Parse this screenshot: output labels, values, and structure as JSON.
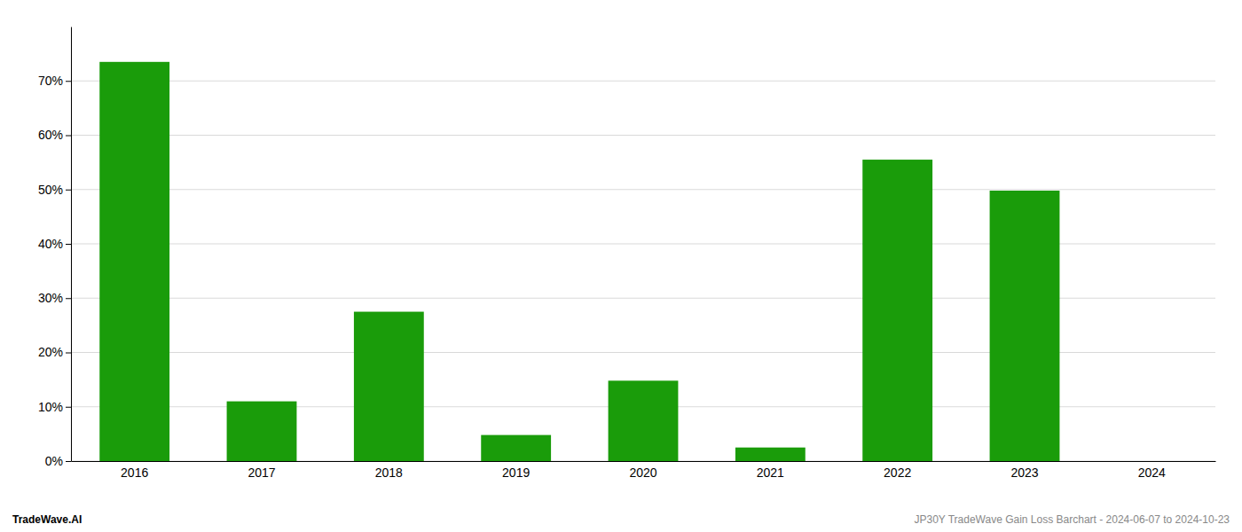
{
  "chart_data": {
    "type": "bar",
    "categories": [
      "2016",
      "2017",
      "2018",
      "2019",
      "2020",
      "2021",
      "2022",
      "2023",
      "2024"
    ],
    "values": [
      73.5,
      11.0,
      27.5,
      4.8,
      14.8,
      2.5,
      55.5,
      49.8,
      0.0
    ],
    "color": "#1a9c0a",
    "ylim": [
      0,
      80
    ],
    "yticks": [
      {
        "value": 0,
        "label": "0%"
      },
      {
        "value": 10,
        "label": "10%"
      },
      {
        "value": 20,
        "label": "20%"
      },
      {
        "value": 30,
        "label": "30%"
      },
      {
        "value": 40,
        "label": "40%"
      },
      {
        "value": 50,
        "label": "50%"
      },
      {
        "value": 60,
        "label": "60%"
      },
      {
        "value": 70,
        "label": "70%"
      }
    ],
    "grid": true,
    "annotations": [
      {
        "text": "TradeWave.AI",
        "color": "#000000"
      },
      {
        "text": "JP30Y TradeWave Gain Loss Barchart - 2024-06-07 to 2024-10-23",
        "color": "#888888"
      }
    ]
  }
}
